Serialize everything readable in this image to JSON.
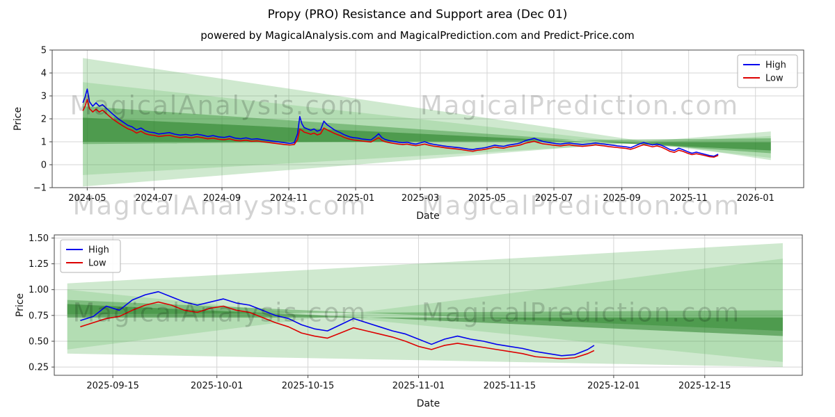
{
  "title": "Propy (PRO) Resistance and Support area (Dec 01)",
  "subtitle": "powered by MagicalAnalysis.com and MagicalPrediction.com and Predict-Price.com",
  "watermarks": {
    "left": "MagicalAnalysis.com",
    "right": "MagicalPrediction.com"
  },
  "colors": {
    "high": "#0000ee",
    "low": "#dd0000",
    "band_light": "#54b054",
    "band_mid": "#2e8b2e",
    "band_dark": "#1f7a1f",
    "grid": "#d5d5d5"
  },
  "chart_data": [
    {
      "id": "top",
      "type": "line",
      "xlabel": "Date",
      "ylabel": "Price",
      "xlim": [
        "2024-03-30",
        "2026-02-14"
      ],
      "ylim": [
        -1,
        5
      ],
      "grid": true,
      "xticks": [
        {
          "date": "2024-05-01",
          "label": "2024-05"
        },
        {
          "date": "2024-07-01",
          "label": "2024-07"
        },
        {
          "date": "2024-09-01",
          "label": "2024-09"
        },
        {
          "date": "2024-11-01",
          "label": "2024-11"
        },
        {
          "date": "2025-01-01",
          "label": "2025-01"
        },
        {
          "date": "2025-03-01",
          "label": "2025-03"
        },
        {
          "date": "2025-05-01",
          "label": "2025-05"
        },
        {
          "date": "2025-07-01",
          "label": "2025-07"
        },
        {
          "date": "2025-09-01",
          "label": "2025-09"
        },
        {
          "date": "2025-11-01",
          "label": "2025-11"
        },
        {
          "date": "2026-01-01",
          "label": "2026-01"
        }
      ],
      "yticks": [
        {
          "v": -1,
          "label": "−1"
        },
        {
          "v": 0,
          "label": "0"
        },
        {
          "v": 1,
          "label": "1"
        },
        {
          "v": 2,
          "label": "2"
        },
        {
          "v": 3,
          "label": "3"
        },
        {
          "v": 4,
          "label": "4"
        },
        {
          "v": 5,
          "label": "5"
        }
      ],
      "legend": {
        "position": "upper-right",
        "entries": [
          {
            "label": "High",
            "color": "#0000ee"
          },
          {
            "label": "Low",
            "color": "#dd0000"
          }
        ]
      },
      "bands": [
        {
          "color": "#54b054",
          "opacity": 0.28,
          "points": [
            [
              "2024-04-27",
              4.65
            ],
            [
              "2026-01-15",
              0.2
            ],
            [
              "2026-01-15",
              1.45
            ],
            [
              "2024-04-27",
              -0.95
            ]
          ]
        },
        {
          "color": "#54b054",
          "opacity": 0.22,
          "points": [
            [
              "2024-04-27",
              3.6
            ],
            [
              "2026-01-15",
              0.3
            ],
            [
              "2026-01-15",
              1.25
            ],
            [
              "2024-04-27",
              -0.45
            ]
          ]
        },
        {
          "color": "#2e8b2e",
          "opacity": 0.4,
          "points": [
            [
              "2024-04-27",
              2.55
            ],
            [
              "2026-01-15",
              0.5
            ],
            [
              "2026-01-15",
              1.15
            ],
            [
              "2024-04-27",
              0.9
            ]
          ]
        },
        {
          "color": "#1f7a1f",
          "opacity": 0.5,
          "points": [
            [
              "2024-04-27",
              2.05
            ],
            [
              "2026-01-15",
              0.62
            ],
            [
              "2026-01-15",
              0.98
            ],
            [
              "2024-04-27",
              1.0
            ]
          ]
        }
      ],
      "x": [
        "2024-04-27",
        "2024-04-29",
        "2024-05-01",
        "2024-05-03",
        "2024-05-06",
        "2024-05-09",
        "2024-05-12",
        "2024-05-15",
        "2024-05-18",
        "2024-05-21",
        "2024-05-24",
        "2024-05-27",
        "2024-05-30",
        "2024-06-03",
        "2024-06-07",
        "2024-06-11",
        "2024-06-15",
        "2024-06-19",
        "2024-06-23",
        "2024-06-27",
        "2024-07-01",
        "2024-07-05",
        "2024-07-10",
        "2024-07-15",
        "2024-07-20",
        "2024-07-25",
        "2024-07-30",
        "2024-08-04",
        "2024-08-09",
        "2024-08-14",
        "2024-08-19",
        "2024-08-24",
        "2024-08-29",
        "2024-09-03",
        "2024-09-08",
        "2024-09-13",
        "2024-09-18",
        "2024-09-23",
        "2024-09-28",
        "2024-10-03",
        "2024-10-08",
        "2024-10-13",
        "2024-10-18",
        "2024-10-23",
        "2024-10-28",
        "2024-11-02",
        "2024-11-06",
        "2024-11-09",
        "2024-11-11",
        "2024-11-13",
        "2024-11-15",
        "2024-11-18",
        "2024-11-21",
        "2024-11-24",
        "2024-11-27",
        "2024-11-30",
        "2024-12-03",
        "2024-12-06",
        "2024-12-09",
        "2024-12-12",
        "2024-12-15",
        "2024-12-18",
        "2024-12-21",
        "2024-12-24",
        "2024-12-27",
        "2024-12-30",
        "2025-01-03",
        "2025-01-07",
        "2025-01-11",
        "2025-01-15",
        "2025-01-19",
        "2025-01-22",
        "2025-01-25",
        "2025-01-28",
        "2025-02-01",
        "2025-02-05",
        "2025-02-09",
        "2025-02-13",
        "2025-02-17",
        "2025-02-21",
        "2025-02-25",
        "2025-03-01",
        "2025-03-05",
        "2025-03-09",
        "2025-03-13",
        "2025-03-17",
        "2025-03-21",
        "2025-03-25",
        "2025-03-29",
        "2025-04-02",
        "2025-04-06",
        "2025-04-10",
        "2025-04-14",
        "2025-04-18",
        "2025-04-22",
        "2025-04-26",
        "2025-04-30",
        "2025-05-04",
        "2025-05-08",
        "2025-05-12",
        "2025-05-16",
        "2025-05-20",
        "2025-05-24",
        "2025-05-28",
        "2025-06-01",
        "2025-06-05",
        "2025-06-09",
        "2025-06-13",
        "2025-06-17",
        "2025-06-21",
        "2025-06-25",
        "2025-06-29",
        "2025-07-03",
        "2025-07-07",
        "2025-07-11",
        "2025-07-15",
        "2025-07-19",
        "2025-07-23",
        "2025-07-27",
        "2025-07-31",
        "2025-08-04",
        "2025-08-08",
        "2025-08-12",
        "2025-08-16",
        "2025-08-20",
        "2025-08-24",
        "2025-08-28",
        "2025-09-01",
        "2025-09-05",
        "2025-09-09",
        "2025-09-13",
        "2025-09-17",
        "2025-09-21",
        "2025-09-25",
        "2025-09-29",
        "2025-10-03",
        "2025-10-07",
        "2025-10-11",
        "2025-10-15",
        "2025-10-19",
        "2025-10-23",
        "2025-10-27",
        "2025-10-31",
        "2025-11-04",
        "2025-11-08",
        "2025-11-12",
        "2025-11-16",
        "2025-11-20",
        "2025-11-24",
        "2025-11-28"
      ],
      "series": [
        {
          "name": "High",
          "color": "#0000ee",
          "values": [
            2.7,
            2.95,
            3.3,
            2.75,
            2.55,
            2.7,
            2.55,
            2.62,
            2.48,
            2.35,
            2.22,
            2.1,
            1.98,
            1.85,
            1.72,
            1.65,
            1.52,
            1.6,
            1.48,
            1.42,
            1.4,
            1.34,
            1.37,
            1.4,
            1.33,
            1.29,
            1.32,
            1.28,
            1.33,
            1.29,
            1.23,
            1.27,
            1.21,
            1.19,
            1.24,
            1.16,
            1.13,
            1.17,
            1.11,
            1.13,
            1.09,
            1.06,
            1.02,
            0.99,
            0.96,
            0.93,
            0.96,
            1.35,
            2.1,
            1.78,
            1.62,
            1.56,
            1.5,
            1.56,
            1.46,
            1.52,
            1.9,
            1.74,
            1.64,
            1.54,
            1.46,
            1.4,
            1.32,
            1.26,
            1.21,
            1.18,
            1.16,
            1.12,
            1.1,
            1.08,
            1.22,
            1.35,
            1.18,
            1.1,
            1.05,
            1.01,
            0.98,
            0.96,
            0.98,
            0.93,
            0.9,
            0.95,
            1.0,
            0.93,
            0.89,
            0.86,
            0.83,
            0.8,
            0.78,
            0.76,
            0.74,
            0.71,
            0.68,
            0.66,
            0.7,
            0.72,
            0.75,
            0.8,
            0.85,
            0.82,
            0.8,
            0.85,
            0.88,
            0.91,
            0.96,
            1.05,
            1.1,
            1.15,
            1.08,
            1.01,
            0.98,
            0.95,
            0.92,
            0.9,
            0.93,
            0.95,
            0.92,
            0.9,
            0.88,
            0.9,
            0.92,
            0.95,
            0.92,
            0.9,
            0.87,
            0.85,
            0.82,
            0.8,
            0.78,
            0.74,
            0.82,
            0.9,
            0.97,
            0.91,
            0.86,
            0.9,
            0.85,
            0.76,
            0.66,
            0.62,
            0.72,
            0.65,
            0.57,
            0.5,
            0.55,
            0.5,
            0.45,
            0.4,
            0.37,
            0.46
          ]
        },
        {
          "name": "Low",
          "color": "#dd0000",
          "values": [
            2.35,
            2.55,
            2.85,
            2.45,
            2.3,
            2.42,
            2.3,
            2.38,
            2.25,
            2.12,
            2.0,
            1.9,
            1.8,
            1.68,
            1.57,
            1.5,
            1.38,
            1.46,
            1.35,
            1.3,
            1.28,
            1.23,
            1.26,
            1.28,
            1.22,
            1.18,
            1.21,
            1.17,
            1.22,
            1.18,
            1.13,
            1.16,
            1.11,
            1.09,
            1.13,
            1.06,
            1.04,
            1.07,
            1.02,
            1.04,
            1.0,
            0.97,
            0.94,
            0.91,
            0.88,
            0.86,
            0.88,
            1.1,
            1.55,
            1.5,
            1.42,
            1.38,
            1.33,
            1.38,
            1.3,
            1.35,
            1.6,
            1.52,
            1.45,
            1.38,
            1.32,
            1.27,
            1.2,
            1.15,
            1.11,
            1.08,
            1.06,
            1.03,
            1.01,
            0.99,
            1.1,
            1.18,
            1.06,
            1.0,
            0.96,
            0.93,
            0.9,
            0.88,
            0.9,
            0.86,
            0.83,
            0.86,
            0.9,
            0.85,
            0.81,
            0.79,
            0.76,
            0.73,
            0.71,
            0.69,
            0.67,
            0.64,
            0.61,
            0.59,
            0.63,
            0.65,
            0.68,
            0.72,
            0.77,
            0.74,
            0.72,
            0.77,
            0.8,
            0.83,
            0.87,
            0.94,
            0.98,
            1.02,
            0.96,
            0.91,
            0.89,
            0.86,
            0.84,
            0.82,
            0.85,
            0.87,
            0.84,
            0.82,
            0.8,
            0.82,
            0.84,
            0.87,
            0.84,
            0.82,
            0.79,
            0.77,
            0.75,
            0.73,
            0.71,
            0.67,
            0.73,
            0.81,
            0.87,
            0.83,
            0.78,
            0.82,
            0.77,
            0.68,
            0.58,
            0.54,
            0.63,
            0.58,
            0.5,
            0.44,
            0.48,
            0.44,
            0.4,
            0.35,
            0.33,
            0.41
          ]
        }
      ]
    },
    {
      "id": "bottom",
      "type": "line",
      "xlabel": "Date",
      "ylabel": "Price",
      "xlim": [
        "2025-09-06",
        "2025-12-30"
      ],
      "ylim": [
        0.17,
        1.53
      ],
      "grid": true,
      "xticks": [
        {
          "date": "2025-09-15",
          "label": "2025-09-15"
        },
        {
          "date": "2025-10-01",
          "label": "2025-10-01"
        },
        {
          "date": "2025-10-15",
          "label": "2025-10-15"
        },
        {
          "date": "2025-11-01",
          "label": "2025-11-01"
        },
        {
          "date": "2025-11-15",
          "label": "2025-11-15"
        },
        {
          "date": "2025-12-01",
          "label": "2025-12-01"
        },
        {
          "date": "2025-12-15",
          "label": "2025-12-15"
        }
      ],
      "yticks": [
        {
          "v": 0.25,
          "label": "0.25"
        },
        {
          "v": 0.5,
          "label": "0.50"
        },
        {
          "v": 0.75,
          "label": "0.75"
        },
        {
          "v": 1.0,
          "label": "1.00"
        },
        {
          "v": 1.25,
          "label": "1.25"
        },
        {
          "v": 1.5,
          "label": "1.50"
        }
      ],
      "legend": {
        "position": "upper-left",
        "entries": [
          {
            "label": "High",
            "color": "#0000ee"
          },
          {
            "label": "Low",
            "color": "#dd0000"
          }
        ]
      },
      "bands": [
        {
          "color": "#54b054",
          "opacity": 0.28,
          "points": [
            [
              "2025-09-08",
              1.06
            ],
            [
              "2025-12-27",
              1.45
            ],
            [
              "2025-12-27",
              0.25
            ],
            [
              "2025-09-08",
              0.38
            ]
          ]
        },
        {
          "color": "#54b054",
          "opacity": 0.22,
          "points": [
            [
              "2025-09-08",
              1.0
            ],
            [
              "2025-12-27",
              0.3
            ],
            [
              "2025-12-27",
              1.3
            ],
            [
              "2025-09-08",
              0.42
            ]
          ]
        },
        {
          "color": "#2e8b2e",
          "opacity": 0.4,
          "points": [
            [
              "2025-09-08",
              0.9
            ],
            [
              "2025-12-27",
              0.6
            ],
            [
              "2025-12-27",
              0.8
            ],
            [
              "2025-09-08",
              0.76
            ]
          ]
        },
        {
          "color": "#1f7a1f",
          "opacity": 0.5,
          "points": [
            [
              "2025-09-08",
              0.86
            ],
            [
              "2025-12-27",
              0.55
            ],
            [
              "2025-12-27",
              0.73
            ],
            [
              "2025-09-08",
              0.73
            ]
          ]
        }
      ],
      "x": [
        "2025-09-10",
        "2025-09-12",
        "2025-09-14",
        "2025-09-16",
        "2025-09-18",
        "2025-09-20",
        "2025-09-22",
        "2025-09-24",
        "2025-09-26",
        "2025-09-28",
        "2025-09-30",
        "2025-10-02",
        "2025-10-04",
        "2025-10-06",
        "2025-10-08",
        "2025-10-10",
        "2025-10-12",
        "2025-10-14",
        "2025-10-16",
        "2025-10-18",
        "2025-10-20",
        "2025-10-22",
        "2025-10-24",
        "2025-10-26",
        "2025-10-28",
        "2025-10-30",
        "2025-11-01",
        "2025-11-03",
        "2025-11-05",
        "2025-11-07",
        "2025-11-09",
        "2025-11-11",
        "2025-11-13",
        "2025-11-15",
        "2025-11-17",
        "2025-11-19",
        "2025-11-21",
        "2025-11-23",
        "2025-11-25",
        "2025-11-27",
        "2025-11-28"
      ],
      "series": [
        {
          "name": "High",
          "color": "#0000ee",
          "values": [
            0.7,
            0.74,
            0.84,
            0.8,
            0.9,
            0.95,
            0.98,
            0.93,
            0.88,
            0.85,
            0.88,
            0.91,
            0.87,
            0.85,
            0.8,
            0.75,
            0.72,
            0.66,
            0.62,
            0.6,
            0.66,
            0.72,
            0.68,
            0.64,
            0.6,
            0.57,
            0.52,
            0.47,
            0.52,
            0.55,
            0.52,
            0.5,
            0.47,
            0.45,
            0.43,
            0.4,
            0.38,
            0.36,
            0.37,
            0.42,
            0.46
          ]
        },
        {
          "name": "Low",
          "color": "#dd0000",
          "values": [
            0.64,
            0.68,
            0.72,
            0.74,
            0.8,
            0.85,
            0.88,
            0.85,
            0.8,
            0.78,
            0.82,
            0.84,
            0.8,
            0.78,
            0.73,
            0.68,
            0.64,
            0.58,
            0.55,
            0.53,
            0.58,
            0.63,
            0.6,
            0.57,
            0.54,
            0.5,
            0.45,
            0.42,
            0.46,
            0.48,
            0.46,
            0.44,
            0.42,
            0.4,
            0.38,
            0.35,
            0.34,
            0.33,
            0.34,
            0.38,
            0.41
          ]
        }
      ]
    }
  ]
}
